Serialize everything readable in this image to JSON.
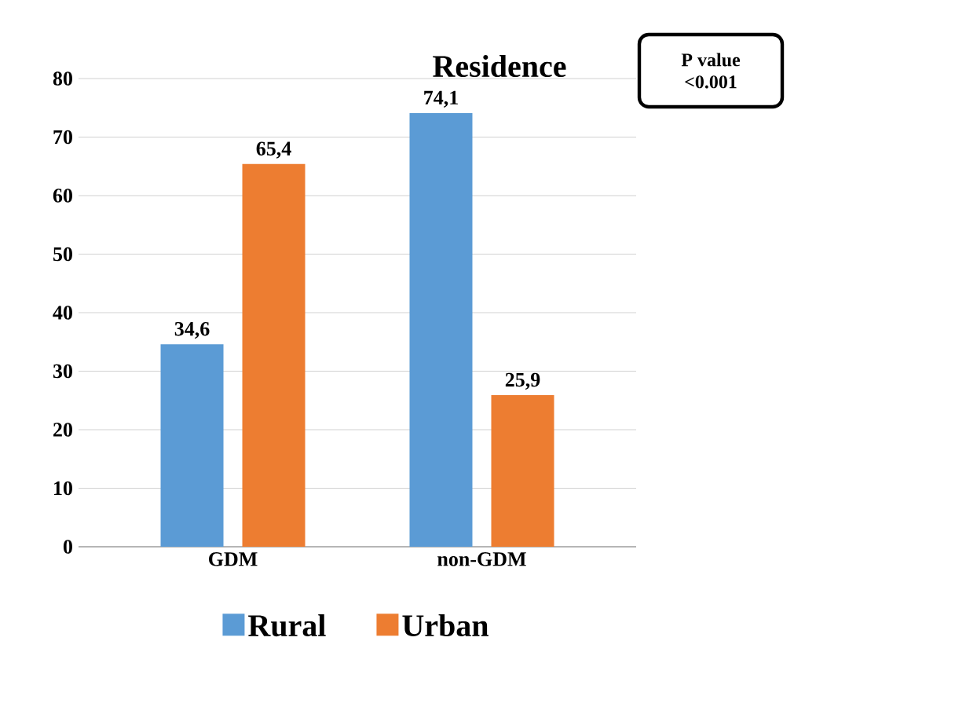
{
  "chart_data": {
    "type": "bar",
    "title": "Residence",
    "annotations": [
      "P value",
      "<0.001"
    ],
    "categories": [
      "GDM",
      "non-GDM"
    ],
    "series": [
      {
        "name": "Rural",
        "color": "#5b9bd5",
        "values": [
          34.6,
          74.1
        ],
        "value_labels": [
          "34,6",
          "74,1"
        ]
      },
      {
        "name": "Urban",
        "color": "#ed7d31",
        "values": [
          65.4,
          25.9
        ],
        "value_labels": [
          "65,4",
          "25,9"
        ]
      }
    ],
    "ylim": [
      0,
      80
    ],
    "yticks": [
      0,
      10,
      20,
      30,
      40,
      50,
      60,
      70,
      80
    ],
    "grid": "y",
    "legend": "bottom"
  }
}
